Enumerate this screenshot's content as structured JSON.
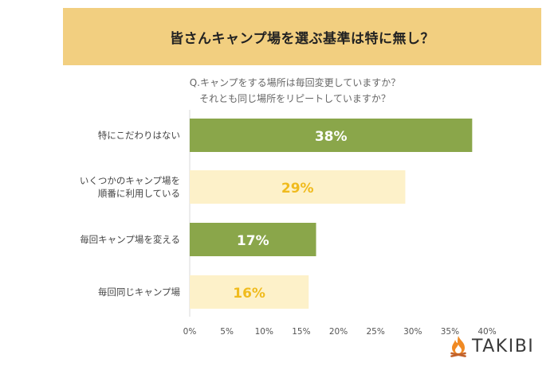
{
  "banner": {
    "title": "皆さんキャンプ場を選ぶ基準は特に無し？"
  },
  "question": {
    "line1": "Q.キャンプをする場所は毎回変更していますか？",
    "line2": "それとも同じ場所をリピートしていますか？"
  },
  "brand": {
    "name": "TAKIBI",
    "icon": "campfire-icon"
  },
  "colors": {
    "banner": "#f2cf80",
    "bar_green": "#8aa64a",
    "bar_cream": "#fdf1c9",
    "label_white": "#ffffff",
    "label_gold": "#f0bb1d"
  },
  "chart_data": {
    "type": "bar",
    "orientation": "horizontal",
    "title": "",
    "xlabel": "",
    "ylabel": "",
    "categories": [
      [
        "特にこだわりはない"
      ],
      [
        "いくつかのキャンプ場を",
        "順番に利用している"
      ],
      [
        "毎回キャンプ場を変える"
      ],
      [
        "毎回同じキャンプ場"
      ]
    ],
    "values": [
      38,
      29,
      17,
      16
    ],
    "value_labels": [
      "38%",
      "29%",
      "17%",
      "16%"
    ],
    "bar_colors": [
      "#8aa64a",
      "#fdf1c9",
      "#8aa64a",
      "#fdf1c9"
    ],
    "label_colors": [
      "#ffffff",
      "#f0bb1d",
      "#ffffff",
      "#f0bb1d"
    ],
    "xlim": [
      0,
      40
    ],
    "xticks": [
      0,
      5,
      10,
      15,
      20,
      25,
      30,
      35,
      40
    ],
    "xtick_labels": [
      "0%",
      "5%",
      "10%",
      "15%",
      "20%",
      "25%",
      "30%",
      "35%",
      "40%"
    ],
    "grid": false,
    "legend": "none"
  }
}
